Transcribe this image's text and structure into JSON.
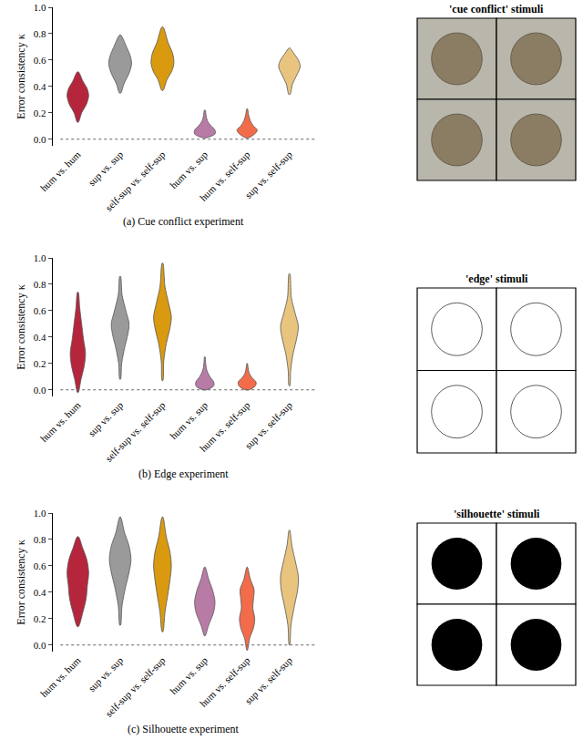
{
  "chart_data": [
    {
      "type": "violin",
      "caption": "(a) Cue conflict experiment",
      "panel_title": "'cue conflict' stimuli",
      "y_label": "Error consistency κ",
      "categories": [
        "hum vs. hum",
        "sup vs. sup",
        "self-sup vs. self-sup",
        "hum vs. sup",
        "hum vs. self-sup",
        "sup vs. self-sup"
      ],
      "colors": [
        "#b5263d",
        "#9a9a9a",
        "#d99a10",
        "#b87ba6",
        "#f26c4b",
        "#e8c47e"
      ],
      "ylim": [
        -0.05,
        1.0
      ],
      "yticks": [
        {
          "value": 0,
          "label": "0.0"
        },
        {
          "value": 0.2,
          "label": "0.2"
        },
        {
          "value": 0.4,
          "label": "0.4"
        },
        {
          "value": 0.6,
          "label": "0.6"
        },
        {
          "value": 0.8,
          "label": "0.8"
        },
        {
          "value": 1,
          "label": "1.0"
        }
      ],
      "reference_line": 0,
      "violins": [
        {
          "y": [
            0.13,
            0.2,
            0.27,
            0.33,
            0.38,
            0.44,
            0.51
          ],
          "density": [
            0.05,
            0.3,
            0.7,
            0.85,
            0.75,
            0.4,
            0.05
          ]
        },
        {
          "y": [
            0.35,
            0.42,
            0.5,
            0.57,
            0.63,
            0.7,
            0.79
          ],
          "density": [
            0.05,
            0.3,
            0.7,
            0.9,
            0.8,
            0.5,
            0.05
          ]
        },
        {
          "y": [
            0.37,
            0.45,
            0.52,
            0.58,
            0.65,
            0.73,
            0.85
          ],
          "density": [
            0.05,
            0.35,
            0.75,
            0.9,
            0.8,
            0.45,
            0.05
          ]
        },
        {
          "y": [
            0.01,
            0.04,
            0.07,
            0.1,
            0.14,
            0.18,
            0.22
          ],
          "density": [
            0.1,
            0.8,
            0.8,
            0.5,
            0.2,
            0.1,
            0.03
          ]
        },
        {
          "y": [
            0.01,
            0.04,
            0.07,
            0.1,
            0.14,
            0.19,
            0.23
          ],
          "density": [
            0.1,
            0.6,
            0.8,
            0.5,
            0.25,
            0.1,
            0.03
          ]
        },
        {
          "y": [
            0.34,
            0.42,
            0.49,
            0.55,
            0.6,
            0.65,
            0.69
          ],
          "density": [
            0.05,
            0.25,
            0.6,
            0.85,
            0.7,
            0.35,
            0.05
          ]
        }
      ]
    },
    {
      "type": "violin",
      "caption": "(b) Edge experiment",
      "panel_title": "'edge' stimuli",
      "y_label": "Error consistency κ",
      "categories": [
        "hum vs. hum",
        "sup vs. sup",
        "self-sup vs. self-sup",
        "hum vs. sup",
        "hum vs. self-sup",
        "sup vs. self-sup"
      ],
      "colors": [
        "#b5263d",
        "#9a9a9a",
        "#d99a10",
        "#b87ba6",
        "#f26c4b",
        "#e8c47e"
      ],
      "ylim": [
        -0.05,
        1.0
      ],
      "yticks": [
        {
          "value": 0,
          "label": "0.0"
        },
        {
          "value": 0.2,
          "label": "0.2"
        },
        {
          "value": 0.4,
          "label": "0.4"
        },
        {
          "value": 0.6,
          "label": "0.6"
        },
        {
          "value": 0.8,
          "label": "0.8"
        },
        {
          "value": 1,
          "label": "1.0"
        }
      ],
      "reference_line": 0,
      "violins": [
        {
          "y": [
            -0.02,
            0.08,
            0.18,
            0.28,
            0.38,
            0.5,
            0.62,
            0.74
          ],
          "density": [
            0.03,
            0.25,
            0.5,
            0.6,
            0.45,
            0.3,
            0.15,
            0.03
          ]
        },
        {
          "y": [
            0.08,
            0.2,
            0.32,
            0.42,
            0.5,
            0.6,
            0.72,
            0.86
          ],
          "density": [
            0.03,
            0.12,
            0.35,
            0.6,
            0.7,
            0.45,
            0.15,
            0.03
          ]
        },
        {
          "y": [
            0.07,
            0.22,
            0.35,
            0.45,
            0.55,
            0.65,
            0.78,
            0.96
          ],
          "density": [
            0.03,
            0.1,
            0.3,
            0.55,
            0.7,
            0.5,
            0.2,
            0.03
          ]
        },
        {
          "y": [
            0.0,
            0.03,
            0.06,
            0.1,
            0.15,
            0.2,
            0.25
          ],
          "density": [
            0.15,
            0.7,
            0.7,
            0.4,
            0.15,
            0.07,
            0.02
          ]
        },
        {
          "y": [
            0.0,
            0.03,
            0.06,
            0.09,
            0.13,
            0.17,
            0.2
          ],
          "density": [
            0.15,
            0.65,
            0.7,
            0.4,
            0.15,
            0.07,
            0.02
          ]
        },
        {
          "y": [
            0.03,
            0.15,
            0.28,
            0.38,
            0.48,
            0.58,
            0.7,
            0.88
          ],
          "density": [
            0.03,
            0.1,
            0.3,
            0.55,
            0.7,
            0.45,
            0.15,
            0.03
          ]
        }
      ]
    },
    {
      "type": "violin",
      "caption": "(c) Silhouette experiment",
      "panel_title": "'silhouette' stimuli",
      "y_label": "Error consistency κ",
      "categories": [
        "hum vs. hum",
        "sup vs. sup",
        "self-sup vs. self-sup",
        "hum vs. sup",
        "hum vs. self-sup",
        "sup vs. self-sup"
      ],
      "colors": [
        "#b5263d",
        "#9a9a9a",
        "#d99a10",
        "#b87ba6",
        "#f26c4b",
        "#e8c47e"
      ],
      "ylim": [
        -0.05,
        1.0
      ],
      "yticks": [
        {
          "value": 0,
          "label": "0.0"
        },
        {
          "value": 0.2,
          "label": "0.2"
        },
        {
          "value": 0.4,
          "label": "0.4"
        },
        {
          "value": 0.6,
          "label": "0.6"
        },
        {
          "value": 0.8,
          "label": "0.8"
        },
        {
          "value": 1,
          "label": "1.0"
        }
      ],
      "reference_line": 0,
      "violins": [
        {
          "y": [
            0.14,
            0.25,
            0.35,
            0.45,
            0.55,
            0.65,
            0.73,
            0.82
          ],
          "density": [
            0.05,
            0.4,
            0.65,
            0.75,
            0.85,
            0.7,
            0.4,
            0.05
          ]
        },
        {
          "y": [
            0.15,
            0.3,
            0.45,
            0.55,
            0.65,
            0.75,
            0.85,
            0.97
          ],
          "density": [
            0.03,
            0.15,
            0.45,
            0.7,
            0.85,
            0.7,
            0.35,
            0.03
          ]
        },
        {
          "y": [
            0.1,
            0.25,
            0.4,
            0.5,
            0.6,
            0.7,
            0.82,
            0.97
          ],
          "density": [
            0.03,
            0.2,
            0.45,
            0.6,
            0.7,
            0.6,
            0.3,
            0.03
          ]
        },
        {
          "y": [
            0.07,
            0.15,
            0.25,
            0.33,
            0.42,
            0.5,
            0.59
          ],
          "density": [
            0.03,
            0.3,
            0.7,
            0.8,
            0.6,
            0.3,
            0.03
          ]
        },
        {
          "y": [
            -0.04,
            0.05,
            0.13,
            0.2,
            0.28,
            0.35,
            0.42,
            0.5,
            0.59
          ],
          "density": [
            0.02,
            0.2,
            0.5,
            0.6,
            0.45,
            0.5,
            0.55,
            0.25,
            0.02
          ]
        },
        {
          "y": [
            0.0,
            0.15,
            0.3,
            0.42,
            0.52,
            0.62,
            0.75,
            0.87
          ],
          "density": [
            0.02,
            0.12,
            0.4,
            0.65,
            0.7,
            0.5,
            0.2,
            0.02
          ]
        }
      ]
    }
  ]
}
